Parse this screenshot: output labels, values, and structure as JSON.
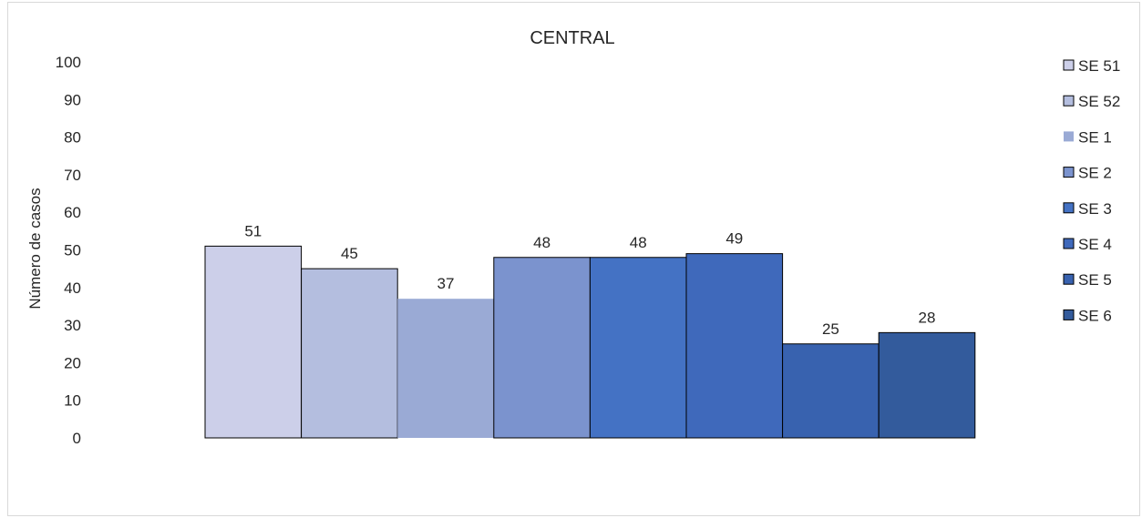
{
  "chart_data": {
    "type": "bar",
    "title": "CENTRAL",
    "xlabel": "",
    "ylabel": "Número de casos",
    "ylim": [
      0,
      100
    ],
    "yticks": [
      0,
      10,
      20,
      30,
      40,
      50,
      60,
      70,
      80,
      90,
      100
    ],
    "grid": false,
    "legend_position": "right",
    "series": [
      {
        "name": "SE 51",
        "value": 51,
        "color": "#CCCFE9"
      },
      {
        "name": "SE 52",
        "value": 45,
        "color": "#B4BEDF"
      },
      {
        "name": "SE 1",
        "value": 37,
        "color": "#9AAAD5"
      },
      {
        "name": "SE 2",
        "value": 48,
        "color": "#7B93CE"
      },
      {
        "name": "SE 3",
        "value": 48,
        "color": "#4472C4"
      },
      {
        "name": "SE 4",
        "value": 49,
        "color": "#3F69BB"
      },
      {
        "name": "SE 5",
        "value": 25,
        "color": "#3862AF"
      },
      {
        "name": "SE 6",
        "value": 28,
        "color": "#335B9C"
      }
    ]
  }
}
